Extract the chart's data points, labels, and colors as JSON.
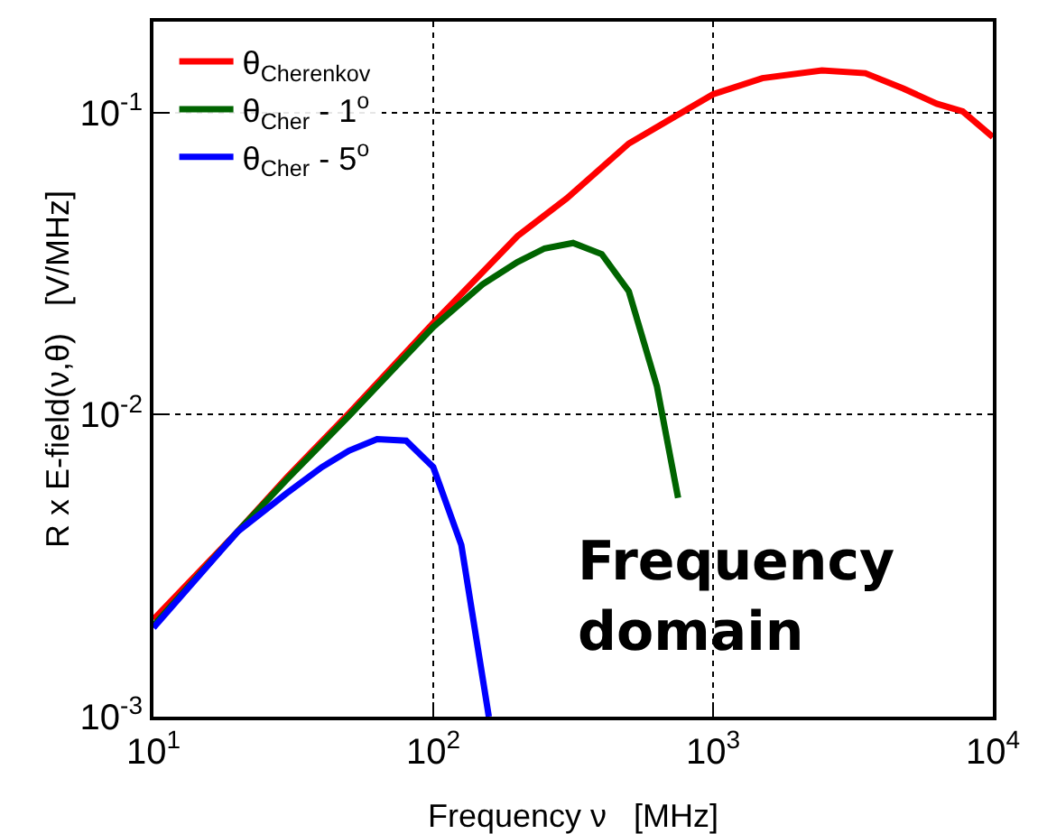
{
  "chart_data": {
    "type": "line",
    "xlabel": "Frequency ν   [MHz]",
    "ylabel": "R x E-field(ν,θ)   [V/MHz]",
    "log": "xy",
    "grid": true,
    "legend": "top left",
    "line_style": "solid",
    "marker": "none",
    "xlim": [
      10,
      10000
    ],
    "xticks": [
      {
        "value": 10,
        "label": "10$^{1}$"
      },
      {
        "value": 100,
        "label": "10$^{2}$"
      },
      {
        "value": 1000,
        "label": "10$^{3}$"
      },
      {
        "value": 10000,
        "label": "10$^{4}$"
      }
    ],
    "ylim": [
      0.001,
      0.2
    ],
    "yticks": [
      {
        "value": 0.001,
        "label": "10$^{-3}$"
      },
      {
        "value": 0.01,
        "label": "10$^{-2}$"
      },
      {
        "value": 0.1,
        "label": "10$^{-1}$"
      }
    ],
    "annotations": [
      "Frequency domain"
    ],
    "series": [
      {
        "name": "θ$_{Cherenkov}$",
        "color": "#ff0000",
        "x": [
          10,
          20,
          30,
          50,
          100,
          200,
          300,
          500,
          1000,
          1500,
          2450,
          3500,
          4800,
          6300,
          7800,
          10000
        ],
        "values": [
          0.0021,
          0.0041,
          0.0062,
          0.0101,
          0.0201,
          0.039,
          0.052,
          0.079,
          0.115,
          0.13,
          0.138,
          0.135,
          0.12,
          0.107,
          0.101,
          0.083
        ]
      },
      {
        "name": "θ$_{Cher}$ - 1$^{o}$",
        "color": "#006400",
        "x": [
          10,
          20,
          30,
          50,
          100,
          150,
          200,
          250,
          316,
          400,
          500,
          630,
          750
        ],
        "values": [
          0.002,
          0.0041,
          0.0061,
          0.0099,
          0.0195,
          0.027,
          0.032,
          0.0355,
          0.037,
          0.034,
          0.0256,
          0.0124,
          0.0053
        ]
      },
      {
        "name": "θ$_{Cher}$ - 5$^{o}$",
        "color": "#0000ff",
        "x": [
          10,
          20,
          30,
          40,
          50,
          63,
          80,
          100,
          126,
          158
        ],
        "values": [
          0.00197,
          0.0041,
          0.0055,
          0.0067,
          0.0076,
          0.0083,
          0.0082,
          0.0067,
          0.0037,
          0.001
        ]
      }
    ]
  }
}
